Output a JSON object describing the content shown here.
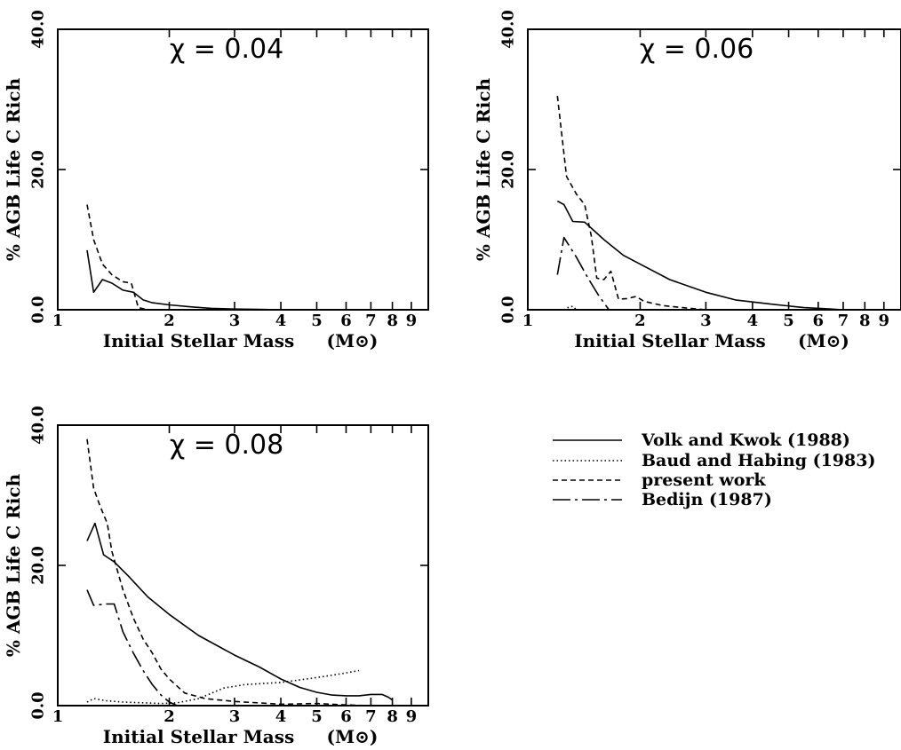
{
  "chart_data": [
    {
      "type": "line",
      "title": "χ = 0.04",
      "xlabel": "Initial Stellar Mass",
      "xlabel_unit": "(M⊙)",
      "ylabel": "% AGB Life C Rich",
      "xscale": "log",
      "xlim": [
        1,
        10
      ],
      "ylim": [
        0,
        40
      ],
      "xticks": [
        1,
        2,
        3,
        4,
        5,
        6,
        7,
        8,
        9
      ],
      "xtick_labels": [
        "1",
        "2",
        "3",
        "4",
        "5",
        "6",
        "7",
        "8",
        "9"
      ],
      "yticks": [
        0,
        20,
        40
      ],
      "ytick_labels": [
        "0.0",
        "20.0",
        "40.0"
      ],
      "series": [
        {
          "name": "Volk and Kwok (1988)",
          "style": "solid",
          "x": [
            1.2,
            1.25,
            1.32,
            1.4,
            1.5,
            1.6,
            1.7,
            1.8,
            2.0,
            2.3,
            2.6,
            3.0,
            3.5,
            4.0
          ],
          "y": [
            8.5,
            2.5,
            4.3,
            3.8,
            2.8,
            2.5,
            1.4,
            1.0,
            0.7,
            0.4,
            0.2,
            0.1,
            0.05,
            0
          ]
        },
        {
          "name": "present work",
          "style": "dashed",
          "x": [
            1.2,
            1.25,
            1.32,
            1.4,
            1.5,
            1.58,
            1.65,
            1.75
          ],
          "y": [
            15,
            10,
            6.5,
            5,
            4,
            3.8,
            0.3,
            0
          ]
        }
      ]
    },
    {
      "type": "line",
      "title": "χ = 0.06",
      "xlabel": "Initial Stellar Mass",
      "xlabel_unit": "(M⊙)",
      "ylabel": "% AGB Life C Rich",
      "xscale": "log",
      "xlim": [
        1,
        10
      ],
      "ylim": [
        0,
        40
      ],
      "xticks": [
        1,
        2,
        3,
        4,
        5,
        6,
        7,
        8,
        9
      ],
      "xtick_labels": [
        "1",
        "2",
        "3",
        "4",
        "5",
        "6",
        "7",
        "8",
        "9"
      ],
      "yticks": [
        0,
        20,
        40
      ],
      "ytick_labels": [
        "0.0",
        "20.0",
        "40.0"
      ],
      "series": [
        {
          "name": "Volk and Kwok (1988)",
          "style": "solid",
          "x": [
            1.2,
            1.25,
            1.32,
            1.42,
            1.6,
            1.8,
            2.0,
            2.4,
            3.0,
            3.6,
            4.5,
            5.5,
            6.5,
            7.0
          ],
          "y": [
            15.5,
            15,
            12.6,
            12.5,
            10,
            7.8,
            6.5,
            4.3,
            2.5,
            1.4,
            0.8,
            0.3,
            0.1,
            0
          ]
        },
        {
          "name": "Baud and Habing (1983)",
          "style": "dotted",
          "x": [
            1.25,
            1.28,
            1.32,
            1.35
          ],
          "y": [
            0,
            0.3,
            0.5,
            0
          ]
        },
        {
          "name": "present work",
          "style": "dashed",
          "x": [
            1.2,
            1.27,
            1.35,
            1.42,
            1.48,
            1.53,
            1.6,
            1.67,
            1.75,
            1.85,
            1.95,
            2.05,
            2.3,
            2.6,
            3.0
          ],
          "y": [
            30.5,
            19,
            16.5,
            15,
            10.5,
            4.5,
            4.3,
            5.5,
            1.5,
            1.6,
            1.9,
            1.2,
            0.6,
            0.3,
            0
          ]
        },
        {
          "name": "Bedijn (1987)",
          "style": "dashdot",
          "x": [
            1.2,
            1.25,
            1.35,
            1.45,
            1.55,
            1.65
          ],
          "y": [
            5,
            10.3,
            7.5,
            4.5,
            2,
            0
          ]
        }
      ]
    },
    {
      "type": "line",
      "title": "χ = 0.08",
      "xlabel": "Initial Stellar Mass",
      "xlabel_unit": "(M⊙)",
      "ylabel": "% AGB Life C Rich",
      "xscale": "log",
      "xlim": [
        1,
        10
      ],
      "ylim": [
        0,
        40
      ],
      "xticks": [
        1,
        2,
        3,
        4,
        5,
        6,
        7,
        8,
        9
      ],
      "xtick_labels": [
        "1",
        "2",
        "3",
        "4",
        "5",
        "6",
        "7",
        "8",
        "9"
      ],
      "yticks": [
        0,
        20,
        40
      ],
      "ytick_labels": [
        "0.0",
        "20.0",
        "40.0"
      ],
      "series": [
        {
          "name": "Volk and Kwok (1988)",
          "style": "solid",
          "x": [
            1.2,
            1.26,
            1.33,
            1.42,
            1.55,
            1.75,
            2.0,
            2.4,
            3.0,
            3.5,
            4.0,
            4.5,
            5.0,
            5.5,
            6.0,
            6.5,
            7.0,
            7.5,
            7.8,
            8.0
          ],
          "y": [
            23.5,
            26,
            21.5,
            20.5,
            18.5,
            15.5,
            13,
            10,
            7.2,
            5.5,
            3.8,
            2.6,
            1.9,
            1.5,
            1.4,
            1.4,
            1.6,
            1.6,
            1.2,
            0.8
          ]
        },
        {
          "name": "Baud and Habing (1983)",
          "style": "dotted",
          "x": [
            1.2,
            1.25,
            1.35,
            1.5,
            1.7,
            1.9,
            2.1,
            2.4,
            2.8,
            3.2,
            4.0,
            5.0,
            5.9,
            6.5
          ],
          "y": [
            0.5,
            1.0,
            0.7,
            0.5,
            0.4,
            0.3,
            0.4,
            1.0,
            2.5,
            3.0,
            3.3,
            4.0,
            4.6,
            5.0
          ]
        },
        {
          "name": "present work",
          "style": "dashed",
          "x": [
            1.2,
            1.25,
            1.3,
            1.36,
            1.4,
            1.5,
            1.6,
            1.7,
            1.8,
            1.9,
            2.0,
            2.2,
            2.5,
            3.0,
            4.0,
            5.0,
            6.0,
            7.0
          ],
          "y": [
            38,
            31,
            28.5,
            26,
            22,
            16.5,
            12.5,
            9.5,
            7.5,
            5.2,
            3.8,
            1.8,
            1.0,
            0.6,
            0.2,
            0.3,
            0.1,
            0
          ]
        },
        {
          "name": "Bedijn (1987)",
          "style": "dashdot",
          "x": [
            1.2,
            1.25,
            1.35,
            1.42,
            1.5,
            1.6,
            1.7,
            1.8,
            1.9,
            2.0,
            2.1
          ],
          "y": [
            16.5,
            14.3,
            14.5,
            14.5,
            10.5,
            7.5,
            5,
            3,
            1.5,
            0.5,
            0
          ]
        }
      ]
    }
  ],
  "legend": {
    "items": [
      {
        "label": "Volk and Kwok (1988)",
        "style": "solid"
      },
      {
        "label": "Baud and Habing (1983)",
        "style": "dotted"
      },
      {
        "label": "present work",
        "style": "dashed"
      },
      {
        "label": "Bedijn (1987)",
        "style": "dashdot"
      }
    ]
  }
}
